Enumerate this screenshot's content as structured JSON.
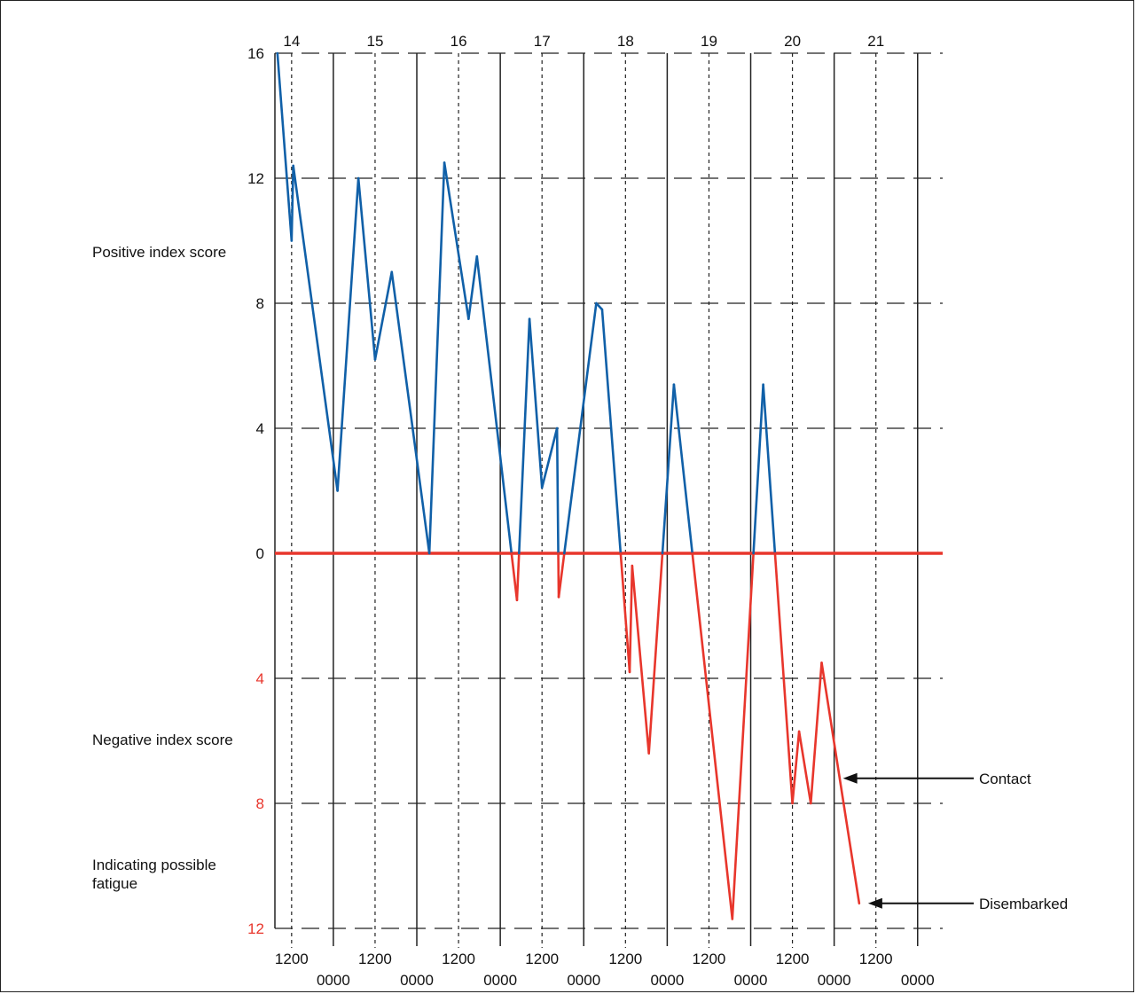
{
  "chart_data": {
    "type": "line",
    "title": "",
    "top_axis_days": [
      "14",
      "15",
      "16",
      "17",
      "18",
      "19",
      "20",
      "21"
    ],
    "bottom_axis_noon_labels": [
      "1200",
      "1200",
      "1200",
      "1200",
      "1200",
      "1200",
      "1200",
      "1200"
    ],
    "bottom_axis_midnight_labels": [
      "0000",
      "0000",
      "0000",
      "0000",
      "0000",
      "0000",
      "0000",
      "0000"
    ],
    "y_ticks_positive": [
      "16",
      "12",
      "8",
      "4",
      "0"
    ],
    "y_ticks_negative": [
      "4",
      "8",
      "12"
    ],
    "ylim": [
      -12,
      16
    ],
    "xlim": [
      13.8,
      21.8
    ],
    "grid": "dashed horizontal at every 4 units, dashed vertical at 1200, solid vertical at 0000",
    "left_labels": {
      "positive": "Positive index score",
      "negative": "Negative index score",
      "fatigue_line1": "Indicating possible",
      "fatigue_line2": "fatigue"
    },
    "annotations": [
      {
        "text": "Contact",
        "x": 20.5,
        "y": -7.2
      },
      {
        "text": "Disembarked",
        "x": 20.8,
        "y": -11.2
      }
    ],
    "colors": {
      "positive": "#1060a8",
      "negative": "#e8362c",
      "zero_line": "#e8362c",
      "negative_tick": "#e8362c"
    },
    "series": [
      {
        "points": [
          [
            13.83,
            16
          ],
          [
            14.0,
            10
          ],
          [
            14.02,
            12.4
          ],
          [
            14.55,
            2
          ],
          [
            14.8,
            12
          ],
          [
            15.0,
            6.2
          ],
          [
            15.2,
            9
          ],
          [
            15.65,
            0
          ],
          [
            15.83,
            12.5
          ],
          [
            16.12,
            7.5
          ],
          [
            16.22,
            9.5
          ],
          [
            16.7,
            -1.5
          ],
          [
            16.85,
            7.5
          ],
          [
            17.0,
            2.1
          ],
          [
            17.18,
            4
          ],
          [
            17.2,
            -1.4
          ],
          [
            17.65,
            8
          ],
          [
            17.72,
            7.8
          ],
          [
            18.05,
            -3.8
          ],
          [
            18.08,
            -0.4
          ],
          [
            18.28,
            -6.4
          ],
          [
            18.58,
            5.4
          ],
          [
            19.28,
            -11.7
          ],
          [
            19.65,
            5.4
          ],
          [
            20.0,
            -8
          ],
          [
            20.08,
            -5.7
          ],
          [
            20.22,
            -8
          ],
          [
            20.35,
            -3.5
          ],
          [
            20.8,
            -11.2
          ]
        ]
      }
    ]
  }
}
